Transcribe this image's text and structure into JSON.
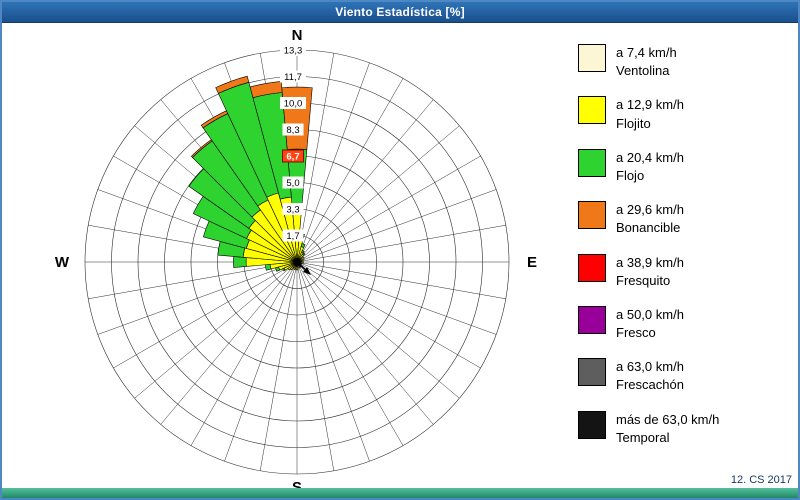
{
  "window": {
    "title": "Viento Estadística [%]",
    "footer_note": "12. CS 2017"
  },
  "colors": {
    "titlebar": "#1f5a9a",
    "window_border": "#4e87c2",
    "bottom_bar": "#2a9674",
    "highlight_box_fill": "#ff4414",
    "highlight_box_border": "#7a1000",
    "grid_line": "#2a2a2a"
  },
  "legend": {
    "items": [
      {
        "color": "#FCF6D4",
        "speed": "a 7,4 km/h",
        "name": "Ventolina"
      },
      {
        "color": "#FFFF00",
        "speed": "a 12,9 km/h",
        "name": "Flojito"
      },
      {
        "color": "#2FD32F",
        "speed": "a 20,4 km/h",
        "name": "Flojo"
      },
      {
        "color": "#F07818",
        "speed": "a 29,6 km/h",
        "name": "Bonancible"
      },
      {
        "color": "#FF0000",
        "speed": "a 38,9 km/h",
        "name": "Fresquito"
      },
      {
        "color": "#990099",
        "speed": "a 50,0 km/h",
        "name": "Fresco"
      },
      {
        "color": "#5E5E5E",
        "speed": "a 63,0 km/h",
        "name": "Frescachón"
      },
      {
        "color": "#141414",
        "speed": "más de 63,0 km/h",
        "name": "Temporal"
      }
    ]
  },
  "chart_data": {
    "type": "wind-rose",
    "title": "Viento Estadística [%]",
    "units": "%",
    "rmax": 13.333,
    "angle_step_deg": 10,
    "grid": true,
    "ring_labels": [
      "1,7",
      "3,3",
      "5,0",
      "6,7",
      "8,3",
      "10,0",
      "11,7",
      "13,3"
    ],
    "ring_values": [
      1.667,
      3.333,
      5.0,
      6.667,
      8.333,
      10.0,
      11.667,
      13.333
    ],
    "highlight_label": "6,7",
    "compass": {
      "n": "N",
      "e": "E",
      "s": "S",
      "w": "W"
    },
    "series": [
      "Ventolina",
      "Flojito",
      "Flojo",
      "Bonancible",
      "Fresquito",
      "Fresco",
      "Frescachón",
      "Temporal"
    ],
    "sectors": [
      {
        "dir": 0,
        "values": [
          0.1,
          3.4,
          3.6,
          3.9
        ]
      },
      {
        "dir": 10,
        "values": [
          0.1,
          1.3,
          0.4,
          0
        ]
      },
      {
        "dir": 20,
        "values": [
          0.1,
          0.9,
          0.2,
          0
        ]
      },
      {
        "dir": 30,
        "values": [
          0.1,
          0.6,
          0.1,
          0
        ]
      },
      {
        "dir": 40,
        "values": [
          0.1,
          0.5,
          0.1,
          0
        ]
      },
      {
        "dir": 50,
        "values": [
          0,
          0.3,
          0,
          0
        ]
      },
      {
        "dir": 60,
        "values": [
          0.1,
          0.4,
          0,
          0
        ]
      },
      {
        "dir": 70,
        "values": [
          0,
          0.2,
          0,
          0
        ]
      },
      {
        "dir": 80,
        "values": [
          0.1,
          0.3,
          0,
          0
        ]
      },
      {
        "dir": 90,
        "values": [
          0,
          0.3,
          0,
          0
        ]
      },
      {
        "dir": 100,
        "values": [
          0.1,
          0.3,
          0,
          0
        ]
      },
      {
        "dir": 110,
        "values": [
          0,
          0.2,
          0,
          0
        ]
      },
      {
        "dir": 120,
        "values": [
          0.1,
          0.2,
          0,
          0
        ]
      },
      {
        "dir": 130,
        "values": [
          0,
          0.3,
          0,
          0
        ]
      },
      {
        "dir": 140,
        "values": [
          0.1,
          0.3,
          0,
          0
        ]
      },
      {
        "dir": 150,
        "values": [
          0,
          0.2,
          0,
          0
        ]
      },
      {
        "dir": 160,
        "values": [
          0.1,
          0.3,
          0,
          0
        ]
      },
      {
        "dir": 170,
        "values": [
          0,
          0.3,
          0,
          0
        ]
      },
      {
        "dir": 180,
        "values": [
          0.1,
          0.4,
          0,
          0
        ]
      },
      {
        "dir": 190,
        "values": [
          0,
          0.3,
          0,
          0
        ]
      },
      {
        "dir": 200,
        "values": [
          0.1,
          0.4,
          0,
          0
        ]
      },
      {
        "dir": 210,
        "values": [
          0,
          0.4,
          0,
          0
        ]
      },
      {
        "dir": 220,
        "values": [
          0.1,
          0.5,
          0,
          0
        ]
      },
      {
        "dir": 230,
        "values": [
          0.1,
          0.6,
          0,
          0
        ]
      },
      {
        "dir": 240,
        "values": [
          0.1,
          0.8,
          0.1,
          0
        ]
      },
      {
        "dir": 250,
        "values": [
          0.1,
          1.1,
          0.2,
          0
        ]
      },
      {
        "dir": 260,
        "values": [
          0.1,
          1.6,
          0.3,
          0
        ]
      },
      {
        "dir": 270,
        "values": [
          0.1,
          3.1,
          0.8,
          0
        ]
      },
      {
        "dir": 280,
        "values": [
          0.1,
          3.3,
          1.6,
          0
        ]
      },
      {
        "dir": 290,
        "values": [
          0.1,
          3.2,
          2.8,
          0
        ]
      },
      {
        "dir": 300,
        "values": [
          0.1,
          3.4,
          3.7,
          0
        ]
      },
      {
        "dir": 310,
        "values": [
          0.1,
          3.6,
          4.6,
          0
        ]
      },
      {
        "dir": 320,
        "values": [
          0.1,
          3.9,
          5.3,
          0.1
        ]
      },
      {
        "dir": 330,
        "values": [
          0.1,
          4.2,
          6.0,
          0.2
        ]
      },
      {
        "dir": 340,
        "values": [
          0.1,
          4.4,
          7.2,
          0.4
        ]
      },
      {
        "dir": 350,
        "values": [
          0.1,
          4.0,
          6.6,
          0.7
        ]
      }
    ]
  }
}
